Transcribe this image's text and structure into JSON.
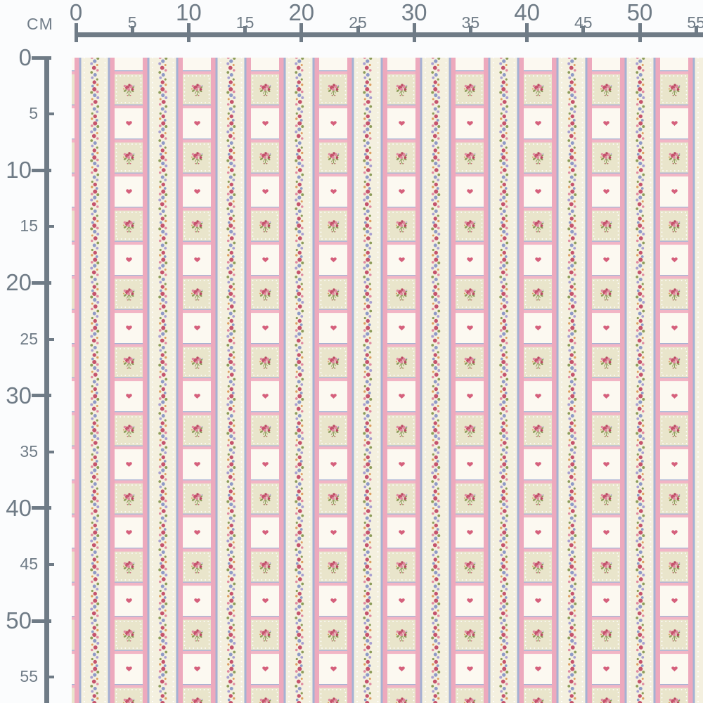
{
  "ruler": {
    "unit_label": "CM",
    "top_values": [
      0,
      5,
      10,
      15,
      20,
      25,
      30,
      35,
      40,
      45,
      50,
      55
    ],
    "left_values": [
      0,
      5,
      10,
      15,
      20,
      25,
      30,
      35,
      40,
      45,
      50,
      55
    ],
    "tick_color": "#6f7b86"
  },
  "fabric": {
    "description": "Cream and pink ticking-stripe patchwork fabric: floral garland stripes alternating with squares of rose bouquets and small hearts",
    "motifs": {
      "heart": "small pink heart",
      "bouquet": "rose bouquet spray",
      "garland": "rose and bluebell garland stripe",
      "dots": "white dotted edging"
    },
    "colors": {
      "square_white": "#fcf9f1",
      "square_beige": "#e9e5cb",
      "rule_pink": "#f2b5c5",
      "stripe_pink": "#eda9bd",
      "stripe_blue": "#a5b1d3",
      "stripe_cream": "#f4f0df",
      "heart": "#d5607c",
      "rose_dark": "#c5536c",
      "rose_light": "#e08ba0",
      "rose_deep": "#b94a62",
      "flower_blue": "#8f9ac6",
      "flower_violet": "#a89fd0",
      "leaf_green": "#8d9c5a",
      "accent_orange": "#dc9f62",
      "dot_white": "#ffffff"
    }
  }
}
